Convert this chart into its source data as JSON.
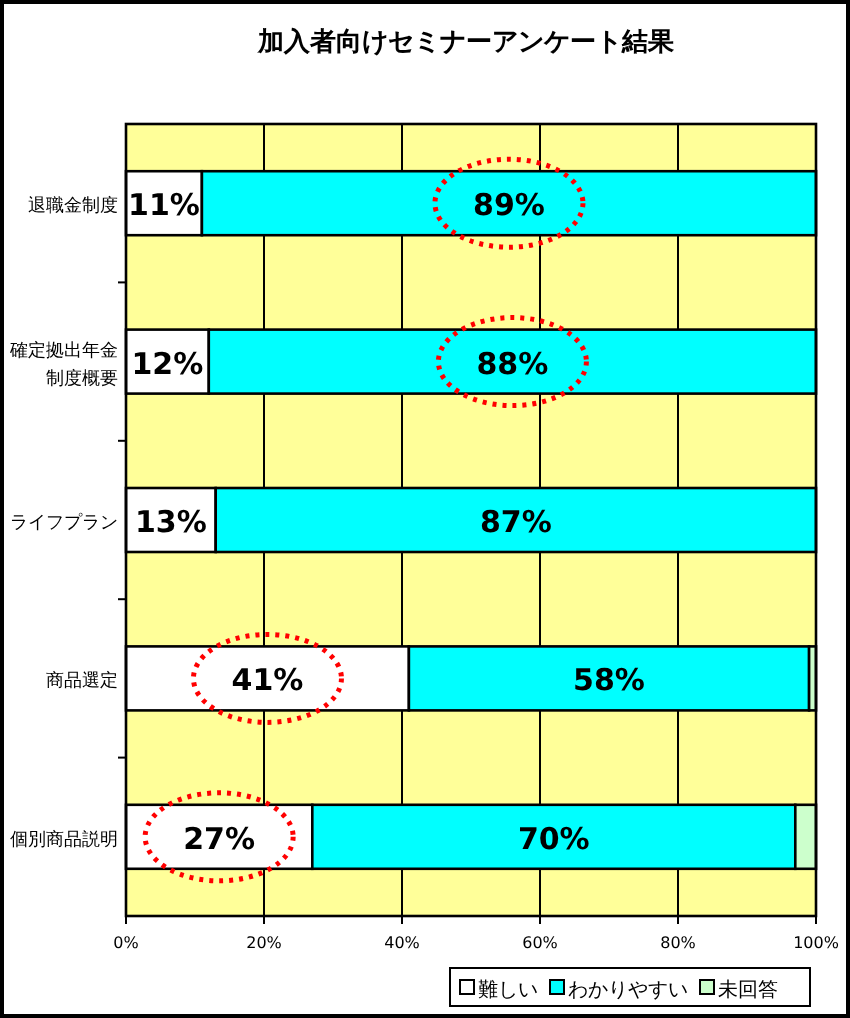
{
  "chart_data": {
    "type": "bar",
    "title": "加入者向けセミナーアンケート結果",
    "orientation": "horizontal",
    "stacked": true,
    "categories": [
      "退職金制度",
      "確定拠出年金制度概要",
      "ライフプラン",
      "商品選定",
      "個別商品説明"
    ],
    "xlim": [
      0,
      100
    ],
    "xticks": [
      {
        "value": 0,
        "label": "0%"
      },
      {
        "value": 20,
        "label": "20%"
      },
      {
        "value": 40,
        "label": "40%"
      },
      {
        "value": 60,
        "label": "60%"
      },
      {
        "value": 80,
        "label": "80%"
      },
      {
        "value": 100,
        "label": "100%"
      }
    ],
    "grid": "x",
    "legend": "bottom right",
    "series": [
      {
        "name": "難しい",
        "color": "#ffffff",
        "values": [
          11,
          12,
          13,
          41,
          27
        ],
        "value_labels": [
          "11%",
          "12%",
          "13%",
          "41%",
          "27%"
        ]
      },
      {
        "name": "わかりやすい",
        "color": "#00ffff",
        "values": [
          89,
          88,
          87,
          58,
          70
        ],
        "value_labels": [
          "89%",
          "88%",
          "87%",
          "58%",
          "70%"
        ]
      },
      {
        "name": "未回答",
        "color": "#ccffcc",
        "values": [
          0,
          0,
          0,
          1,
          3
        ]
      }
    ]
  }
}
